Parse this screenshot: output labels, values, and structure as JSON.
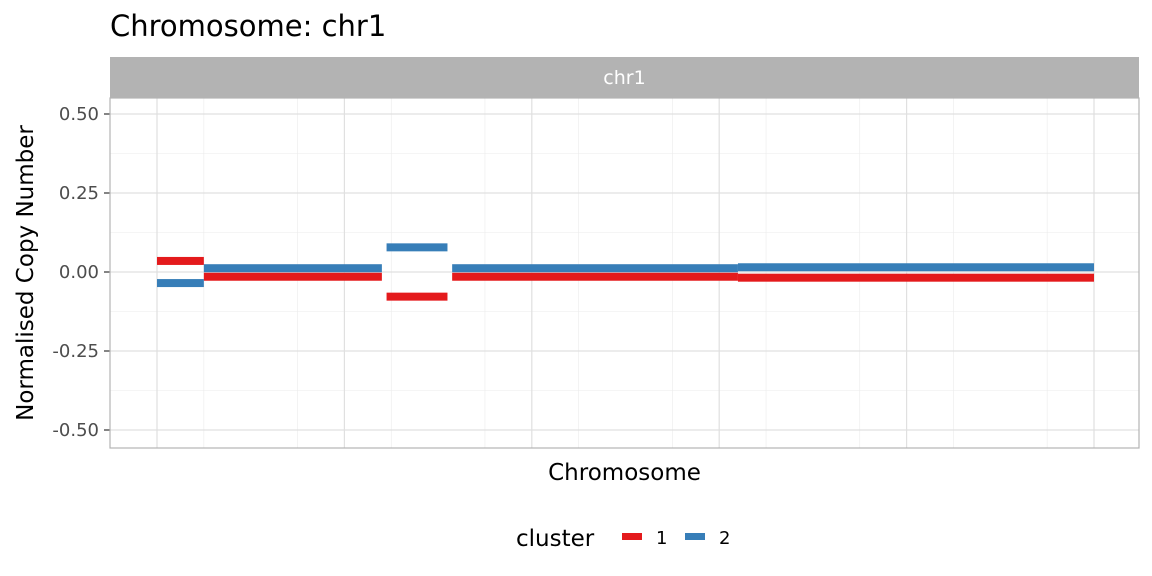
{
  "chart_data": {
    "type": "segment",
    "title": "Chromosome: chr1",
    "facet_label": "chr1",
    "xlabel": "Chromosome",
    "ylabel": "Normalised Copy Number",
    "ylim": [
      -0.55,
      0.55
    ],
    "yticks": [
      0.5,
      0.25,
      0.0,
      -0.25,
      -0.5
    ],
    "ytick_labels": [
      "0.50",
      "0.25",
      "0.00",
      "-0.25",
      "-0.50"
    ],
    "xlim": [
      0,
      1
    ],
    "grid": true,
    "legend": {
      "title": "cluster",
      "position": "bottom"
    },
    "series": [
      {
        "name": "1",
        "color": "#e41a1c",
        "segments": [
          {
            "x0": 0.0,
            "x1": 0.05,
            "y": 0.035
          },
          {
            "x0": 0.05,
            "x1": 0.24,
            "y": -0.015
          },
          {
            "x0": 0.245,
            "x1": 0.31,
            "y": -0.078
          },
          {
            "x0": 0.315,
            "x1": 0.62,
            "y": -0.015
          },
          {
            "x0": 0.62,
            "x1": 1.0,
            "y": -0.018
          }
        ]
      },
      {
        "name": "2",
        "color": "#377eb8",
        "segments": [
          {
            "x0": 0.0,
            "x1": 0.05,
            "y": -0.035
          },
          {
            "x0": 0.05,
            "x1": 0.24,
            "y": 0.012
          },
          {
            "x0": 0.245,
            "x1": 0.31,
            "y": 0.078
          },
          {
            "x0": 0.315,
            "x1": 0.62,
            "y": 0.012
          },
          {
            "x0": 0.62,
            "x1": 1.0,
            "y": 0.015
          }
        ]
      }
    ]
  }
}
